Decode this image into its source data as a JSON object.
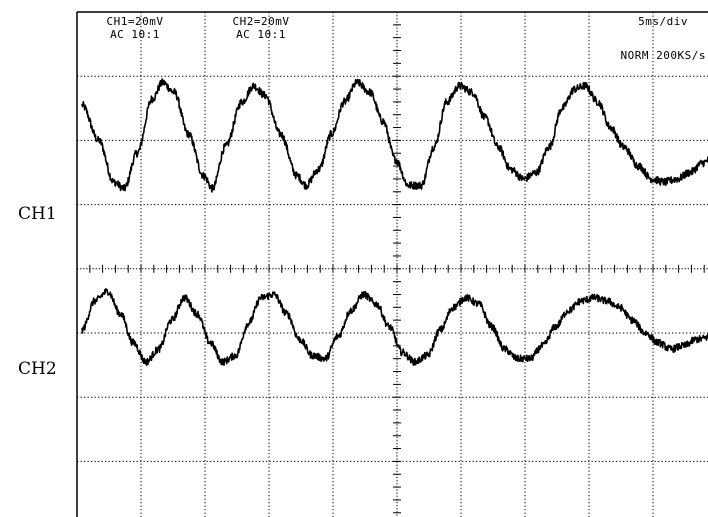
{
  "chart_data": {
    "type": "line",
    "title": "",
    "header": {
      "ch1_scale": "CH1=20mV",
      "ch1_coupling": "AC 10:1",
      "ch2_scale": "CH2=20mV",
      "ch2_coupling": "AC 10:1",
      "timebase": "5ms/div",
      "mode": "NORM 200KS/s"
    },
    "channel_labels": [
      "CH1",
      "CH2"
    ],
    "grid": true,
    "grid_divisions": {
      "x": 10,
      "y": 8
    },
    "x_unit": "ms",
    "x_range_ms": [
      0,
      49.4
    ],
    "series": [
      {
        "name": "CH1",
        "color": "#000000",
        "offset_div": 2,
        "volts_per_div_mV": 20,
        "noise_amplitude_div": 0.06,
        "points": [
          [
            0.0,
            0.55
          ],
          [
            1.3,
            0.0
          ],
          [
            2.5,
            -0.65
          ],
          [
            3.3,
            -0.75
          ],
          [
            4.3,
            -0.2
          ],
          [
            5.5,
            0.65
          ],
          [
            6.3,
            0.9
          ],
          [
            7.2,
            0.75
          ],
          [
            8.3,
            0.1
          ],
          [
            9.5,
            -0.55
          ],
          [
            10.2,
            -0.75
          ],
          [
            11.2,
            -0.1
          ],
          [
            12.5,
            0.6
          ],
          [
            13.4,
            0.85
          ],
          [
            14.3,
            0.7
          ],
          [
            15.5,
            0.1
          ],
          [
            16.8,
            -0.55
          ],
          [
            17.5,
            -0.7
          ],
          [
            18.5,
            -0.45
          ],
          [
            19.5,
            0.1
          ],
          [
            20.5,
            0.6
          ],
          [
            21.5,
            0.9
          ],
          [
            22.5,
            0.75
          ],
          [
            23.5,
            0.3
          ],
          [
            24.5,
            -0.3
          ],
          [
            25.5,
            -0.7
          ],
          [
            26.5,
            -0.7
          ],
          [
            27.5,
            -0.1
          ],
          [
            28.5,
            0.6
          ],
          [
            29.5,
            0.85
          ],
          [
            30.5,
            0.75
          ],
          [
            31.5,
            0.35
          ],
          [
            32.5,
            -0.1
          ],
          [
            33.5,
            -0.45
          ],
          [
            34.5,
            -0.6
          ],
          [
            35.5,
            -0.5
          ],
          [
            36.5,
            -0.1
          ],
          [
            37.5,
            0.5
          ],
          [
            38.5,
            0.8
          ],
          [
            39.3,
            0.85
          ],
          [
            40.3,
            0.6
          ],
          [
            41.3,
            0.2
          ],
          [
            42.3,
            -0.1
          ],
          [
            43.5,
            -0.4
          ],
          [
            44.5,
            -0.6
          ],
          [
            45.5,
            -0.65
          ],
          [
            46.5,
            -0.6
          ],
          [
            47.5,
            -0.5
          ],
          [
            48.5,
            -0.35
          ],
          [
            49.4,
            -0.25
          ]
        ]
      },
      {
        "name": "CH2",
        "color": "#000000",
        "offset_div": -1,
        "volts_per_div_mV": 20,
        "noise_amplitude_div": 0.055,
        "points": [
          [
            0.0,
            0.05
          ],
          [
            1.0,
            0.5
          ],
          [
            2.0,
            0.65
          ],
          [
            3.0,
            0.3
          ],
          [
            4.0,
            -0.15
          ],
          [
            5.0,
            -0.45
          ],
          [
            6.0,
            -0.25
          ],
          [
            7.0,
            0.2
          ],
          [
            8.0,
            0.55
          ],
          [
            9.0,
            0.3
          ],
          [
            10.0,
            -0.15
          ],
          [
            11.0,
            -0.45
          ],
          [
            12.0,
            -0.35
          ],
          [
            13.0,
            0.15
          ],
          [
            14.0,
            0.55
          ],
          [
            15.0,
            0.6
          ],
          [
            16.0,
            0.3
          ],
          [
            17.0,
            -0.1
          ],
          [
            18.0,
            -0.35
          ],
          [
            19.0,
            -0.4
          ],
          [
            20.0,
            -0.05
          ],
          [
            21.0,
            0.35
          ],
          [
            22.0,
            0.6
          ],
          [
            23.0,
            0.45
          ],
          [
            24.0,
            0.1
          ],
          [
            25.0,
            -0.3
          ],
          [
            26.0,
            -0.45
          ],
          [
            27.0,
            -0.35
          ],
          [
            28.0,
            0.05
          ],
          [
            29.0,
            0.4
          ],
          [
            30.0,
            0.55
          ],
          [
            31.0,
            0.45
          ],
          [
            32.0,
            0.1
          ],
          [
            33.0,
            -0.25
          ],
          [
            34.0,
            -0.4
          ],
          [
            35.0,
            -0.4
          ],
          [
            36.0,
            -0.2
          ],
          [
            37.0,
            0.1
          ],
          [
            38.0,
            0.35
          ],
          [
            39.0,
            0.5
          ],
          [
            40.0,
            0.55
          ],
          [
            41.0,
            0.5
          ],
          [
            42.0,
            0.4
          ],
          [
            43.0,
            0.2
          ],
          [
            44.0,
            0.0
          ],
          [
            45.0,
            -0.15
          ],
          [
            46.0,
            -0.25
          ],
          [
            47.0,
            -0.2
          ],
          [
            48.0,
            -0.1
          ],
          [
            49.4,
            -0.05
          ]
        ]
      }
    ]
  }
}
